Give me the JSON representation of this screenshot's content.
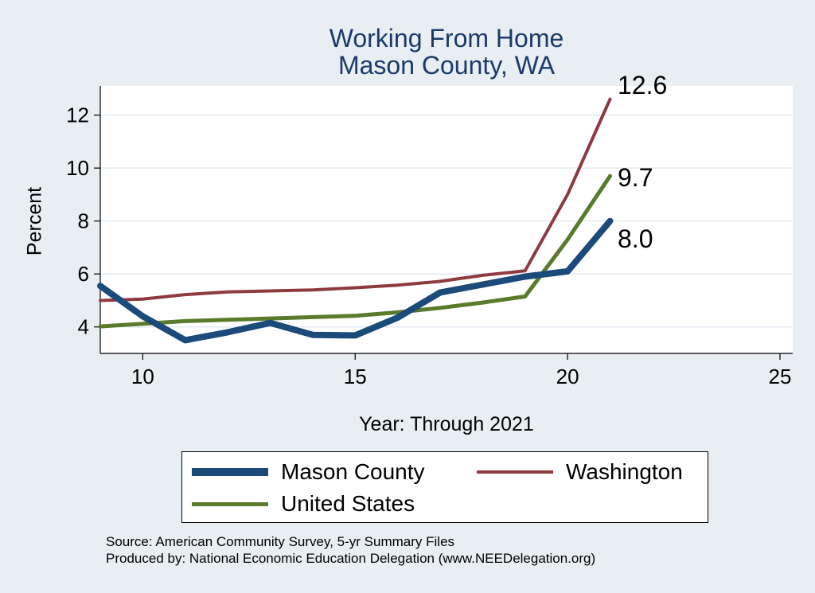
{
  "chart_data": {
    "type": "line",
    "title": [
      "Working From Home",
      "Mason County, WA"
    ],
    "xlabel": "Year: Through 2021",
    "ylabel": "Percent",
    "xlim": [
      9,
      25.3
    ],
    "ylim": [
      3,
      13.1
    ],
    "xticks": [
      10,
      15,
      20,
      25
    ],
    "yticks": [
      4,
      6,
      8,
      10,
      12
    ],
    "grid": "horizontal",
    "legend_position": "bottom",
    "series": [
      {
        "name": "Mason County",
        "color": "#1b4b7a",
        "x": [
          9,
          10,
          11,
          12,
          13,
          14,
          15,
          16,
          17,
          18,
          19,
          20,
          21
        ],
        "y": [
          5.55,
          4.4,
          3.5,
          3.8,
          4.15,
          3.7,
          3.68,
          4.35,
          5.3,
          5.6,
          5.9,
          6.1,
          8.0
        ],
        "end_label": "8.0"
      },
      {
        "name": "Washington",
        "color": "#8e3a3f",
        "x": [
          9,
          10,
          11,
          12,
          13,
          14,
          15,
          16,
          17,
          18,
          19,
          20,
          21
        ],
        "y": [
          5.0,
          5.05,
          5.22,
          5.32,
          5.36,
          5.4,
          5.48,
          5.58,
          5.72,
          5.95,
          6.12,
          9.0,
          12.6
        ],
        "end_label": "12.6"
      },
      {
        "name": "United States",
        "color": "#5a7a2c",
        "x": [
          9,
          10,
          11,
          12,
          13,
          14,
          15,
          16,
          17,
          18,
          19,
          20,
          21
        ],
        "y": [
          4.02,
          4.12,
          4.22,
          4.27,
          4.32,
          4.37,
          4.42,
          4.55,
          4.72,
          4.92,
          5.15,
          7.3,
          9.7
        ],
        "end_label": "9.7"
      }
    ]
  },
  "legend": {
    "items": [
      {
        "label": "Mason County",
        "color": "#1b4b7a"
      },
      {
        "label": "Washington",
        "color": "#8e3a3f"
      },
      {
        "label": "United States",
        "color": "#5a7a2c"
      }
    ]
  },
  "notes": {
    "source": "Source: American Community Survey, 5-yr Summary Files",
    "produced": "Produced by: National Economic Education Delegation (www.NEEDelegation.org)"
  }
}
